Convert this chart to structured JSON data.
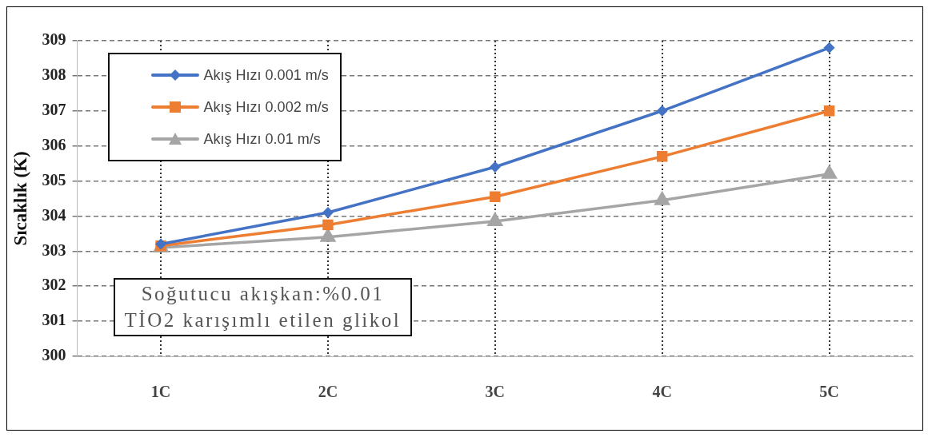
{
  "chart_data": {
    "type": "line",
    "ylabel": "Sıcaklık (K)",
    "categories": [
      "1C",
      "2C",
      "3C",
      "4C",
      "5C"
    ],
    "series": [
      {
        "name": "Akış Hızı 0.001 m/s",
        "color": "#4472c4",
        "marker": "diamond",
        "values": [
          303.2,
          304.1,
          305.4,
          307.0,
          308.8
        ]
      },
      {
        "name": "Akış Hızı 0.002 m/s",
        "color": "#ed7d31",
        "marker": "square",
        "values": [
          303.15,
          303.75,
          304.55,
          305.7,
          307.0
        ]
      },
      {
        "name": "Akış Hızı 0.01 m/s",
        "color": "#a5a5a5",
        "marker": "triangle",
        "values": [
          303.1,
          303.4,
          303.85,
          304.45,
          305.2
        ]
      }
    ],
    "ylim": [
      300,
      309
    ],
    "yticks": [
      300,
      301,
      302,
      303,
      304,
      305,
      306,
      307,
      308,
      309
    ],
    "grid": true,
    "legend": "top left",
    "line_style": "solid",
    "annotations": [
      "Soğutucu akışkan:%0.01\nTİO2 karışımlı etilen glikol"
    ]
  }
}
